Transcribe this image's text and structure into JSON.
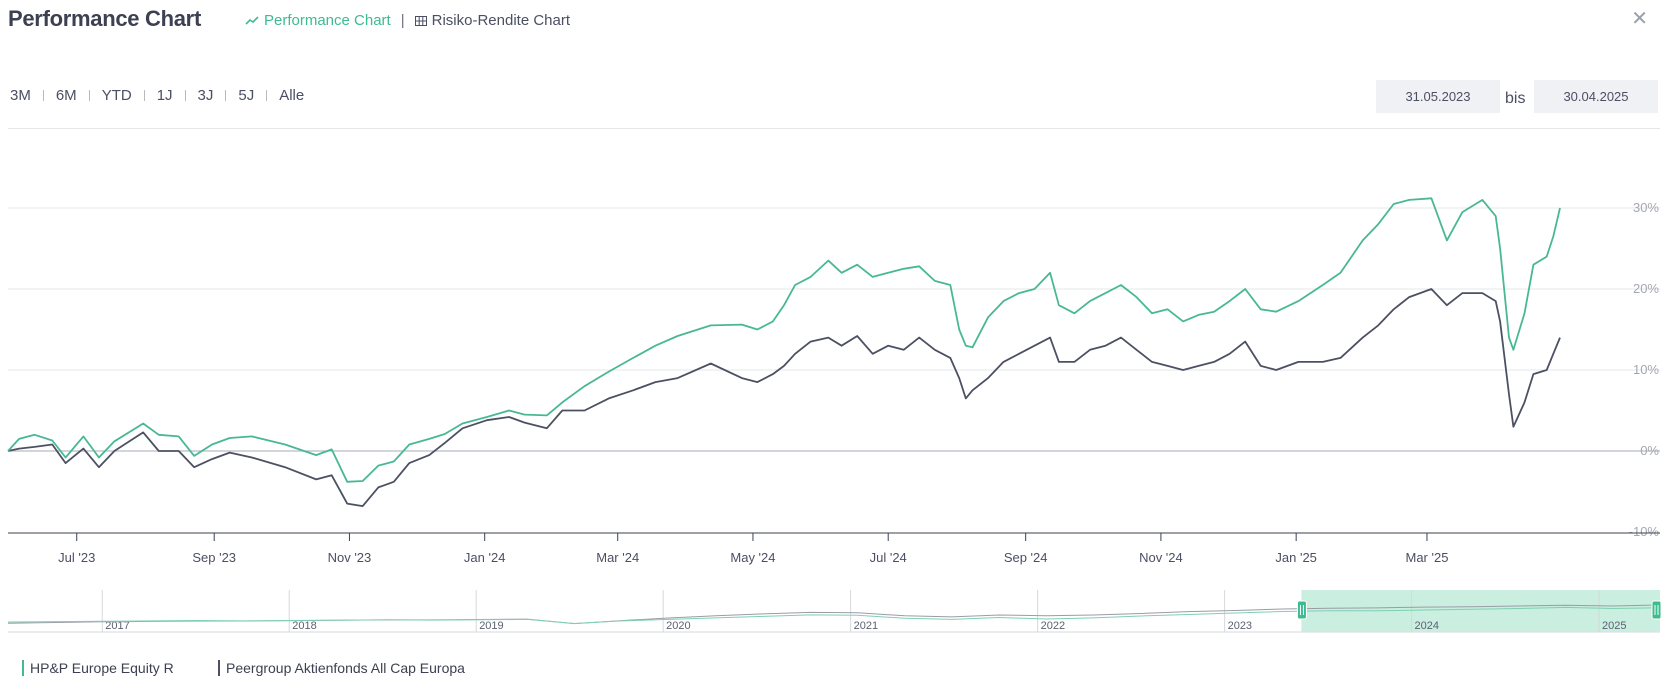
{
  "header": {
    "title": "Performance Chart",
    "tab_performance": "Performance Chart",
    "tab_risk": "Risiko-Rendite Chart",
    "tab_separator": "|"
  },
  "ranges": [
    "3M",
    "6M",
    "YTD",
    "1J",
    "3J",
    "5J",
    "Alle"
  ],
  "date_from": "31.05.2023",
  "date_to": "30.04.2025",
  "date_separator": "bis",
  "colors": {
    "fund": "#48b894",
    "peer": "#4c5062",
    "accent": "#3dbb91",
    "navigator_fill": "#c4ecdc"
  },
  "chart_data": {
    "type": "line",
    "x_ticks": [
      "Jul '23",
      "Sep '23",
      "Nov '23",
      "Jan '24",
      "Mar '24",
      "May '24",
      "Jul '24",
      "Sep '24",
      "Nov '24",
      "Jan '25",
      "Mar '25"
    ],
    "y_ticks": [
      "-10%",
      "0%",
      "10%",
      "20%",
      "30%"
    ],
    "ylim": [
      -10,
      33
    ],
    "grid": true,
    "legend_position": "bottom-left",
    "x_range": [
      "2023-05-31",
      "2025-04-30"
    ],
    "series": [
      {
        "name": "HP&P Europe Equity R",
        "color": "#48b894",
        "points": [
          [
            "2023-05-31",
            0
          ],
          [
            "2023-06-05",
            1.5
          ],
          [
            "2023-06-12",
            2.0
          ],
          [
            "2023-06-20",
            1.3
          ],
          [
            "2023-06-26",
            -0.8
          ],
          [
            "2023-07-04",
            1.8
          ],
          [
            "2023-07-11",
            -0.8
          ],
          [
            "2023-07-18",
            1.2
          ],
          [
            "2023-07-31",
            3.4
          ],
          [
            "2023-08-07",
            2.0
          ],
          [
            "2023-08-16",
            1.8
          ],
          [
            "2023-08-23",
            -0.6
          ],
          [
            "2023-08-31",
            0.8
          ],
          [
            "2023-09-08",
            1.6
          ],
          [
            "2023-09-18",
            1.8
          ],
          [
            "2023-10-03",
            0.8
          ],
          [
            "2023-10-17",
            -0.5
          ],
          [
            "2023-10-24",
            0.2
          ],
          [
            "2023-10-31",
            -3.8
          ],
          [
            "2023-11-07",
            -3.7
          ],
          [
            "2023-11-14",
            -1.8
          ],
          [
            "2023-11-21",
            -1.3
          ],
          [
            "2023-11-28",
            0.8
          ],
          [
            "2023-12-07",
            1.5
          ],
          [
            "2023-12-14",
            2.1
          ],
          [
            "2023-12-22",
            3.4
          ],
          [
            "2024-01-02",
            4.2
          ],
          [
            "2024-01-12",
            5.0
          ],
          [
            "2024-01-19",
            4.5
          ],
          [
            "2024-01-29",
            4.4
          ],
          [
            "2024-02-05",
            6.0
          ],
          [
            "2024-02-15",
            8.0
          ],
          [
            "2024-02-26",
            9.8
          ],
          [
            "2024-03-08",
            11.5
          ],
          [
            "2024-03-18",
            13.0
          ],
          [
            "2024-03-28",
            14.2
          ],
          [
            "2024-04-12",
            15.5
          ],
          [
            "2024-04-26",
            15.6
          ],
          [
            "2024-05-03",
            15.0
          ],
          [
            "2024-05-10",
            16.0
          ],
          [
            "2024-05-15",
            18.0
          ],
          [
            "2024-05-20",
            20.5
          ],
          [
            "2024-05-27",
            21.5
          ],
          [
            "2024-06-04",
            23.5
          ],
          [
            "2024-06-10",
            22.0
          ],
          [
            "2024-06-17",
            23.0
          ],
          [
            "2024-06-24",
            21.5
          ],
          [
            "2024-07-01",
            22.0
          ],
          [
            "2024-07-08",
            22.5
          ],
          [
            "2024-07-15",
            22.8
          ],
          [
            "2024-07-22",
            21.0
          ],
          [
            "2024-07-29",
            20.5
          ],
          [
            "2024-08-02",
            15.0
          ],
          [
            "2024-08-05",
            13.0
          ],
          [
            "2024-08-08",
            12.8
          ],
          [
            "2024-08-15",
            16.5
          ],
          [
            "2024-08-22",
            18.5
          ],
          [
            "2024-08-29",
            19.5
          ],
          [
            "2024-09-05",
            20.0
          ],
          [
            "2024-09-12",
            22.0
          ],
          [
            "2024-09-16",
            18.0
          ],
          [
            "2024-09-23",
            17.0
          ],
          [
            "2024-09-30",
            18.5
          ],
          [
            "2024-10-07",
            19.5
          ],
          [
            "2024-10-14",
            20.5
          ],
          [
            "2024-10-21",
            19.0
          ],
          [
            "2024-10-28",
            17.0
          ],
          [
            "2024-11-04",
            17.5
          ],
          [
            "2024-11-11",
            16.0
          ],
          [
            "2024-11-18",
            16.8
          ],
          [
            "2024-11-25",
            17.2
          ],
          [
            "2024-12-02",
            18.5
          ],
          [
            "2024-12-09",
            20.0
          ],
          [
            "2024-12-16",
            17.5
          ],
          [
            "2024-12-23",
            17.2
          ],
          [
            "2025-01-02",
            18.5
          ],
          [
            "2025-01-13",
            20.5
          ],
          [
            "2025-01-21",
            22.0
          ],
          [
            "2025-01-31",
            26.0
          ],
          [
            "2025-02-07",
            28.0
          ],
          [
            "2025-02-14",
            30.5
          ],
          [
            "2025-02-21",
            31.0
          ],
          [
            "2025-03-03",
            31.2
          ],
          [
            "2025-03-10",
            26.0
          ],
          [
            "2025-03-17",
            29.5
          ],
          [
            "2025-03-26",
            31.0
          ],
          [
            "2025-04-01",
            29.0
          ],
          [
            "2025-04-03",
            25.0
          ],
          [
            "2025-04-07",
            14.0
          ],
          [
            "2025-04-09",
            12.5
          ],
          [
            "2025-04-14",
            17.0
          ],
          [
            "2025-04-18",
            23.0
          ],
          [
            "2025-04-24",
            24.0
          ],
          [
            "2025-04-27",
            26.5
          ],
          [
            "2025-04-30",
            30.0
          ]
        ]
      },
      {
        "name": "Peergroup Aktienfonds All Cap Europa",
        "color": "#4c5062",
        "points": [
          [
            "2023-05-31",
            0
          ],
          [
            "2023-06-05",
            0.3
          ],
          [
            "2023-06-12",
            0.5
          ],
          [
            "2023-06-20",
            0.8
          ],
          [
            "2023-06-26",
            -1.5
          ],
          [
            "2023-07-04",
            0.3
          ],
          [
            "2023-07-11",
            -2.0
          ],
          [
            "2023-07-18",
            0.0
          ],
          [
            "2023-07-31",
            2.3
          ],
          [
            "2023-08-07",
            0.0
          ],
          [
            "2023-08-16",
            0.0
          ],
          [
            "2023-08-23",
            -2.0
          ],
          [
            "2023-08-31",
            -1.0
          ],
          [
            "2023-09-08",
            -0.2
          ],
          [
            "2023-09-18",
            -0.8
          ],
          [
            "2023-10-03",
            -2.0
          ],
          [
            "2023-10-17",
            -3.5
          ],
          [
            "2023-10-24",
            -3.0
          ],
          [
            "2023-10-31",
            -6.5
          ],
          [
            "2023-11-07",
            -6.8
          ],
          [
            "2023-11-14",
            -4.5
          ],
          [
            "2023-11-21",
            -3.8
          ],
          [
            "2023-11-28",
            -1.5
          ],
          [
            "2023-12-07",
            -0.5
          ],
          [
            "2023-12-14",
            1.0
          ],
          [
            "2023-12-22",
            2.8
          ],
          [
            "2024-01-02",
            3.8
          ],
          [
            "2024-01-12",
            4.2
          ],
          [
            "2024-01-19",
            3.5
          ],
          [
            "2024-01-29",
            2.8
          ],
          [
            "2024-02-05",
            5.0
          ],
          [
            "2024-02-15",
            5.0
          ],
          [
            "2024-02-26",
            6.5
          ],
          [
            "2024-03-08",
            7.5
          ],
          [
            "2024-03-18",
            8.5
          ],
          [
            "2024-03-28",
            9.0
          ],
          [
            "2024-04-12",
            10.8
          ],
          [
            "2024-04-26",
            9.0
          ],
          [
            "2024-05-03",
            8.5
          ],
          [
            "2024-05-10",
            9.5
          ],
          [
            "2024-05-15",
            10.5
          ],
          [
            "2024-05-20",
            12.0
          ],
          [
            "2024-05-27",
            13.5
          ],
          [
            "2024-06-04",
            14.0
          ],
          [
            "2024-06-10",
            13.0
          ],
          [
            "2024-06-17",
            14.2
          ],
          [
            "2024-06-24",
            12.0
          ],
          [
            "2024-07-01",
            13.0
          ],
          [
            "2024-07-08",
            12.5
          ],
          [
            "2024-07-15",
            14.0
          ],
          [
            "2024-07-22",
            12.5
          ],
          [
            "2024-07-29",
            11.5
          ],
          [
            "2024-08-02",
            9.0
          ],
          [
            "2024-08-05",
            6.5
          ],
          [
            "2024-08-08",
            7.5
          ],
          [
            "2024-08-15",
            9.0
          ],
          [
            "2024-08-22",
            11.0
          ],
          [
            "2024-08-29",
            12.0
          ],
          [
            "2024-09-05",
            13.0
          ],
          [
            "2024-09-12",
            14.0
          ],
          [
            "2024-09-16",
            11.0
          ],
          [
            "2024-09-23",
            11.0
          ],
          [
            "2024-09-30",
            12.5
          ],
          [
            "2024-10-07",
            13.0
          ],
          [
            "2024-10-14",
            14.0
          ],
          [
            "2024-10-21",
            12.5
          ],
          [
            "2024-10-28",
            11.0
          ],
          [
            "2024-11-04",
            10.5
          ],
          [
            "2024-11-11",
            10.0
          ],
          [
            "2024-11-18",
            10.5
          ],
          [
            "2024-11-25",
            11.0
          ],
          [
            "2024-12-02",
            12.0
          ],
          [
            "2024-12-09",
            13.5
          ],
          [
            "2024-12-16",
            10.5
          ],
          [
            "2024-12-23",
            10.0
          ],
          [
            "2025-01-02",
            11.0
          ],
          [
            "2025-01-13",
            11.0
          ],
          [
            "2025-01-21",
            11.5
          ],
          [
            "2025-01-31",
            14.0
          ],
          [
            "2025-02-07",
            15.5
          ],
          [
            "2025-02-14",
            17.5
          ],
          [
            "2025-02-21",
            19.0
          ],
          [
            "2025-03-03",
            20.0
          ],
          [
            "2025-03-10",
            18.0
          ],
          [
            "2025-03-17",
            19.5
          ],
          [
            "2025-03-26",
            19.5
          ],
          [
            "2025-04-01",
            18.5
          ],
          [
            "2025-04-03",
            16.0
          ],
          [
            "2025-04-07",
            7.0
          ],
          [
            "2025-04-09",
            3.0
          ],
          [
            "2025-04-14",
            6.0
          ],
          [
            "2025-04-18",
            9.5
          ],
          [
            "2025-04-24",
            10.0
          ],
          [
            "2025-04-27",
            12.0
          ],
          [
            "2025-04-30",
            14.0
          ]
        ]
      }
    ],
    "navigator": {
      "years": [
        "2017",
        "2018",
        "2019",
        "2020",
        "2021",
        "2022",
        "2023",
        "2024",
        "2025"
      ],
      "x_range": [
        "2016-07-01",
        "2025-04-30"
      ],
      "selected_range": [
        "2023-05-31",
        "2025-04-30"
      ],
      "series_fund": [
        0,
        0.5,
        1.0,
        1.5,
        2.0,
        1.5,
        2.0,
        2.5,
        3.0,
        2.5,
        3.0,
        3.5,
        -2.0,
        1.5,
        3.5,
        5.5,
        7.5,
        9.5,
        9.0,
        5.0,
        3.5,
        6.0,
        4.0,
        5.5,
        8.0,
        10.0,
        12.0,
        14.0,
        15.0,
        15.0,
        16.0,
        17.0,
        18.0,
        19.5,
        18.0,
        19.0
      ],
      "series_peer": [
        1.0,
        2.0,
        3.0,
        3.5,
        4.0,
        4.0,
        4.5,
        5.0,
        5.5,
        5.5,
        6.0,
        6.5,
        0.5,
        4.5,
        8.0,
        11.0,
        13.5,
        15.5,
        15.0,
        11.0,
        9.5,
        12.0,
        11.0,
        12.0,
        14.0,
        16.5,
        18.0,
        20.0,
        21.0,
        21.5,
        22.5,
        23.0,
        24.0,
        25.0,
        24.0,
        25.5
      ]
    }
  },
  "legend": {
    "fund": "HP&P Europe Equity R",
    "peer": "Peergroup Aktienfonds All Cap Europa"
  }
}
